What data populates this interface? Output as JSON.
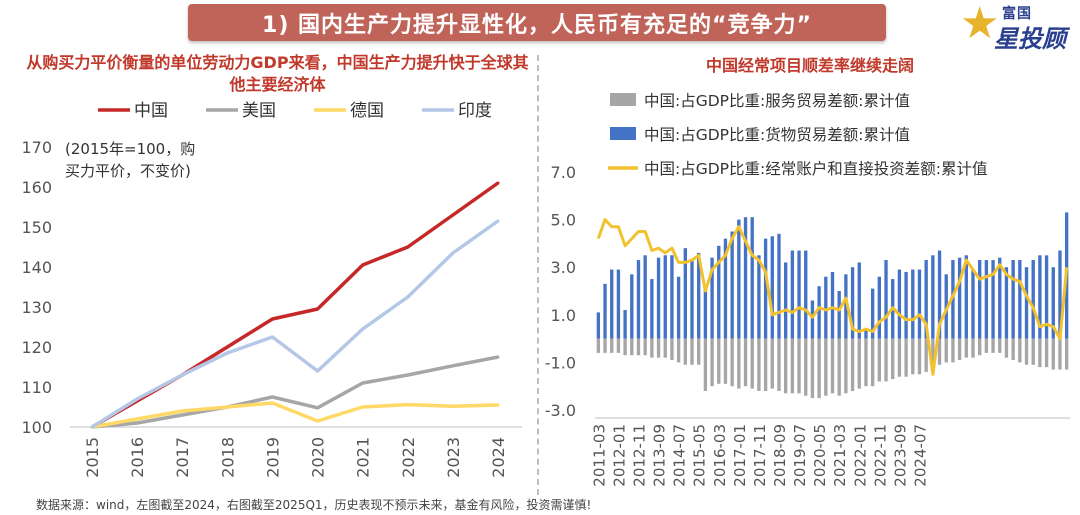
{
  "banner_title": "1) 国内生产力提升显性化，人民币有充足的“竞争力”",
  "logo": {
    "line1": "富国",
    "line2": "星投顾"
  },
  "source_note": "数据来源：wind，左图截至2024，右图截至2025Q1，历史表现不预示未来，基金有风险，投资需谨慎!",
  "chart_data": [
    {
      "type": "line",
      "title": "从购买力平价衡量的单位劳动力GDP来看，中国生产力提升快于全球其他主要经济体",
      "note": [
        "(2015年=100，购",
        "买力平价，不变价)"
      ],
      "x": [
        "2015",
        "2016",
        "2017",
        "2018",
        "2019",
        "2020",
        "2021",
        "2022",
        "2023",
        "2024"
      ],
      "series": [
        {
          "name": "中国",
          "color": "#c62828",
          "values": [
            100,
            106.5,
            113,
            120,
            127,
            129.5,
            140.5,
            145,
            153,
            161
          ]
        },
        {
          "name": "美国",
          "color": "#a6a6a6",
          "values": [
            100,
            101,
            103,
            105,
            107.5,
            104.8,
            111,
            113,
            115.3,
            117.5
          ]
        },
        {
          "name": "德国",
          "color": "#ffd966",
          "values": [
            100,
            102,
            104,
            105,
            106,
            101.5,
            105,
            105.6,
            105.2,
            105.5
          ]
        },
        {
          "name": "印度",
          "color": "#b4c7e7",
          "values": [
            100,
            107,
            113,
            118.5,
            122.5,
            114,
            124.5,
            132.5,
            143.5,
            151.5
          ]
        }
      ],
      "ylim": [
        100,
        170
      ],
      "yticks": [
        "100",
        "110",
        "120",
        "130",
        "140",
        "150",
        "160",
        "170"
      ],
      "legend": "top",
      "grid": false
    },
    {
      "type": "bar+line",
      "title": "中国经常项目顺差率继续走阔",
      "x_tick_labels": [
        "2011-03",
        "2012-01",
        "2012-11",
        "2013-09",
        "2014-07",
        "2015-05",
        "2016-03",
        "2017-01",
        "2017-11",
        "2018-09",
        "2019-07",
        "2020-05",
        "2021-03",
        "2022-01",
        "2022-11",
        "2023-09",
        "2024-07"
      ],
      "x_tick_every": 3,
      "ylim": [
        -3.0,
        7.0
      ],
      "yticks": [
        "-3.0",
        "-1.0",
        "1.0",
        "3.0",
        "5.0",
        "7.0"
      ],
      "legend": "top",
      "series": [
        {
          "name": "中国:占GDP比重:服务贸易差额:累计值",
          "type": "bar",
          "color": "#a6a6a6",
          "values": [
            -0.6,
            -0.6,
            -0.6,
            -0.6,
            -0.7,
            -0.7,
            -0.7,
            -0.7,
            -0.8,
            -0.8,
            -0.8,
            -0.9,
            -1.0,
            -1.1,
            -1.1,
            -1.1,
            -2.2,
            -2.0,
            -1.9,
            -1.9,
            -2.0,
            -2.1,
            -2.0,
            -2.1,
            -2.2,
            -2.2,
            -2.1,
            -2.2,
            -2.3,
            -2.3,
            -2.3,
            -2.4,
            -2.5,
            -2.5,
            -2.4,
            -2.3,
            -2.4,
            -2.3,
            -2.2,
            -2.1,
            -2.0,
            -2.0,
            -1.8,
            -1.8,
            -1.7,
            -1.6,
            -1.6,
            -1.5,
            -1.5,
            -1.4,
            -1.2,
            -1.1,
            -1.0,
            -1.0,
            -0.9,
            -0.8,
            -0.8,
            -0.7,
            -0.6,
            -0.6,
            -0.6,
            -0.8,
            -0.9,
            -1.0,
            -1.1,
            -1.1,
            -1.2,
            -1.2,
            -1.3,
            -1.3,
            -1.3
          ]
        },
        {
          "name": "中国:占GDP比重:货物贸易差额:累计值",
          "type": "bar",
          "color": "#4472c4",
          "values": [
            1.1,
            2.3,
            2.9,
            2.9,
            1.2,
            2.7,
            3.3,
            3.5,
            2.5,
            3.4,
            3.5,
            3.5,
            2.6,
            3.8,
            3.3,
            3.6,
            2.2,
            3.4,
            3.9,
            4.2,
            4.5,
            5.0,
            5.1,
            5.1,
            3.5,
            4.2,
            4.3,
            4.4,
            3.2,
            3.7,
            3.7,
            3.7,
            1.6,
            2.2,
            2.6,
            2.8,
            2.0,
            2.7,
            3.0,
            3.2,
            0.4,
            2.1,
            2.6,
            3.3,
            2.5,
            2.9,
            2.8,
            2.9,
            2.9,
            3.3,
            3.5,
            3.7,
            2.7,
            3.3,
            3.4,
            3.5,
            2.9,
            3.3,
            3.3,
            3.3,
            3.4,
            3.0,
            3.3,
            3.3,
            3.0,
            3.3,
            3.5,
            3.5,
            3.0,
            3.7,
            5.3
          ]
        },
        {
          "name": "中国:占GDP比重:经常账户和直接投资差额:累计值",
          "type": "line",
          "color": "#f2c12e",
          "values": [
            4.2,
            5.0,
            4.7,
            4.7,
            3.9,
            4.2,
            4.5,
            4.5,
            3.7,
            3.8,
            3.6,
            3.8,
            3.2,
            3.2,
            3.3,
            3.5,
            2.0,
            2.9,
            3.2,
            3.5,
            4.2,
            4.7,
            4.1,
            3.5,
            3.3,
            2.8,
            1.0,
            1.1,
            1.2,
            1.1,
            1.3,
            1.2,
            0.9,
            1.3,
            1.2,
            1.3,
            1.2,
            1.7,
            0.4,
            0.3,
            0.4,
            0.3,
            0.7,
            0.9,
            1.3,
            1.0,
            0.8,
            0.8,
            1.0,
            0.6,
            -1.5,
            0.6,
            1.2,
            1.8,
            2.4,
            3.3,
            2.9,
            2.5,
            2.6,
            2.7,
            3.1,
            2.7,
            2.5,
            2.4,
            1.8,
            1.3,
            0.5,
            0.6,
            0.5,
            0.0,
            3.0
          ]
        }
      ]
    }
  ]
}
